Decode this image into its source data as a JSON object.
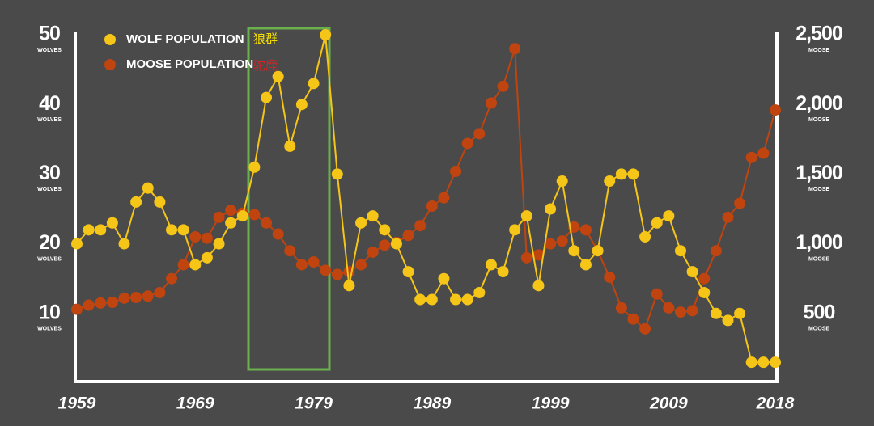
{
  "chart_data": {
    "type": "line",
    "x": [
      1959,
      1960,
      1961,
      1962,
      1963,
      1964,
      1965,
      1966,
      1967,
      1968,
      1969,
      1970,
      1971,
      1972,
      1973,
      1974,
      1975,
      1976,
      1977,
      1978,
      1979,
      1980,
      1981,
      1982,
      1983,
      1984,
      1985,
      1986,
      1987,
      1988,
      1989,
      1990,
      1991,
      1992,
      1993,
      1994,
      1995,
      1996,
      1997,
      1998,
      1999,
      2000,
      2001,
      2002,
      2003,
      2004,
      2005,
      2006,
      2007,
      2008,
      2009,
      2010,
      2011,
      2012,
      2013,
      2014,
      2015,
      2016,
      2017,
      2018
    ],
    "series": [
      {
        "name": "WOLF POPULATION",
        "color": "#f5c518",
        "values": [
          20,
          22,
          22,
          23,
          20,
          26,
          28,
          26,
          22,
          22,
          17,
          18,
          20,
          23,
          24,
          31,
          41,
          44,
          34,
          40,
          43,
          50,
          30,
          14,
          23,
          24,
          22,
          20,
          16,
          12,
          12,
          15,
          12,
          12,
          13,
          17,
          16,
          22,
          24,
          14,
          25,
          29,
          19,
          17,
          19,
          29,
          30,
          30,
          21,
          23,
          24,
          19,
          16,
          13,
          10,
          9,
          10,
          3,
          3,
          3
        ]
      },
      {
        "name": "MOOSE POPULATION",
        "color": "#c0440f",
        "axis": "y2",
        "values": [
          530,
          560,
          575,
          580,
          610,
          615,
          625,
          650,
          750,
          850,
          1050,
          1040,
          1190,
          1240,
          1220,
          1210,
          1150,
          1070,
          950,
          850,
          870,
          810,
          780,
          800,
          850,
          940,
          990,
          1010,
          1060,
          1130,
          1270,
          1330,
          1520,
          1720,
          1790,
          2010,
          2130,
          2400,
          900,
          920,
          1000,
          1020,
          1120,
          1100,
          950,
          760,
          540,
          460,
          390,
          640,
          540,
          510,
          520,
          750,
          950,
          1190,
          1290,
          1620,
          1650,
          1960
        ]
      }
    ],
    "xlim": [
      1959,
      2018
    ],
    "xticks": [
      1959,
      1969,
      1979,
      1989,
      1999,
      2009,
      2018
    ],
    "ylim": [
      0,
      50
    ],
    "yticks": [
      10,
      20,
      30,
      40,
      50
    ],
    "y_unit": "WOLVES",
    "y2lim": [
      0,
      2500
    ],
    "y2ticks": [
      {
        "value": 500,
        "label": "500"
      },
      {
        "value": 1000,
        "label": "1,000"
      },
      {
        "value": 1500,
        "label": "1,500"
      },
      {
        "value": 2000,
        "label": "2,000"
      },
      {
        "value": 2500,
        "label": "2,500"
      }
    ],
    "y2_unit": "MOOSE",
    "annotations": [
      {
        "text": "狼群",
        "color": "#f5e000"
      },
      {
        "text": "驼鹿",
        "color": "#e02020"
      }
    ]
  }
}
